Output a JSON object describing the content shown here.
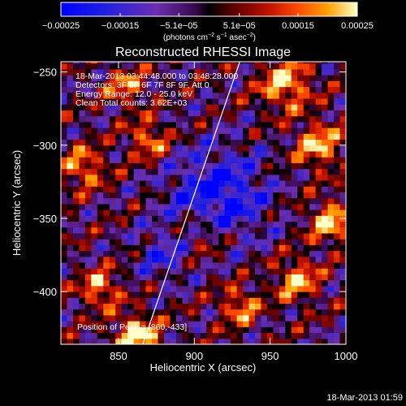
{
  "chart_data": {
    "type": "heatmap",
    "title": "Reconstructed RHESSI Image",
    "xlabel": "Heliocentric X (arcsec)",
    "ylabel": "Heliocentric Y (arcsec)",
    "xlim": [
      812,
      1000
    ],
    "ylim": [
      -436,
      -243
    ],
    "x_ticks": [
      850,
      900,
      950,
      1000
    ],
    "y_ticks": [
      -400,
      -350,
      -300,
      -250
    ],
    "x_tick_labels": [
      "850",
      "900",
      "950",
      "1000"
    ],
    "y_tick_labels": [
      "−400",
      "−350",
      "−300",
      "−250"
    ],
    "colorbar": {
      "min": -0.00025,
      "max": 0.00025,
      "ticks": [
        -0.00025,
        -0.00015,
        -5.1e-05,
        5.1e-05,
        0.00015,
        0.00025
      ],
      "tick_labels": [
        "−0.00025",
        "−0.00015",
        "−5.1e−05",
        "5.1e−05",
        "0.00015",
        "0.00025"
      ],
      "units_text": [
        "(photons cm",
        "−2",
        " s",
        "−1",
        " asec",
        "−2",
        ")"
      ]
    },
    "annotations": [
      "18-Mar-2013 03:44:48.000 to 03:48:28.000",
      "Detectors: 3F 5F 6F 7F 8F 9F, Att 0",
      "Energy Range: 12.0 - 25.0 keV",
      "Clean    Total counts: 3.62E+03"
    ],
    "peak_label": "Position of Peak = [860,-433]",
    "limb_line": {
      "x": [
        866,
        930
      ],
      "y": [
        -436,
        -243
      ]
    },
    "bright_regions": [
      {
        "x": 862,
        "y": -430,
        "level": 1.0,
        "r": 10
      },
      {
        "x": 838,
        "y": -398,
        "level": 0.75,
        "r": 9
      },
      {
        "x": 827,
        "y": -315,
        "level": 0.7,
        "r": 10
      },
      {
        "x": 870,
        "y": -296,
        "level": 0.7,
        "r": 9
      },
      {
        "x": 960,
        "y": -258,
        "level": 0.85,
        "r": 12
      },
      {
        "x": 982,
        "y": -300,
        "level": 0.8,
        "r": 11
      },
      {
        "x": 990,
        "y": -352,
        "level": 0.85,
        "r": 10
      },
      {
        "x": 968,
        "y": -392,
        "level": 0.8,
        "r": 10
      },
      {
        "x": 930,
        "y": -410,
        "level": 0.7,
        "r": 9
      },
      {
        "x": 905,
        "y": -360,
        "level": 0.5,
        "r": 12
      },
      {
        "x": 855,
        "y": -260,
        "level": 0.65,
        "r": 9
      }
    ],
    "dark_regions": [
      {
        "x": 915,
        "y": -335,
        "level": -0.9,
        "r": 22
      },
      {
        "x": 880,
        "y": -375,
        "level": -0.5,
        "r": 12
      }
    ]
  },
  "timestamp": "18-Mar-2013 01:59"
}
